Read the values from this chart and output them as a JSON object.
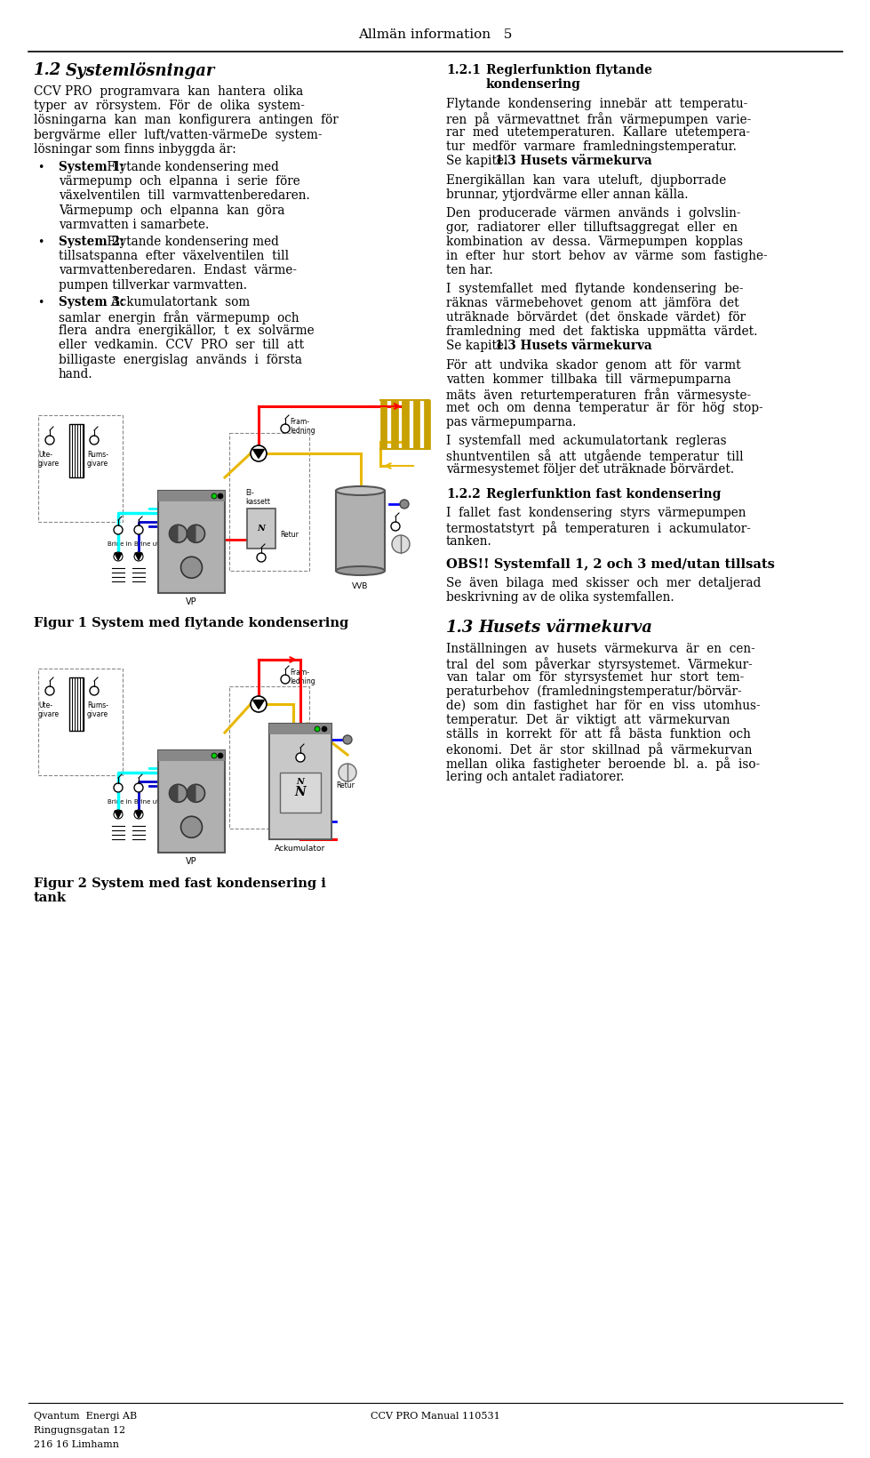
{
  "page_header": "Allmän information   5",
  "section_title": "1.2   Systemlösningar",
  "footer_left": "Qvantum  Energi AB\nRingugnsgatan 12\n216 16 Limhamn",
  "footer_center": "CCV PRO Manual 110531",
  "bg_color": "#ffffff",
  "text_color": "#000000",
  "fig1_caption": "Figur 1 System med flytande kondensering",
  "fig2_caption": "Figur 2 System med fast kondensering i\ntank"
}
